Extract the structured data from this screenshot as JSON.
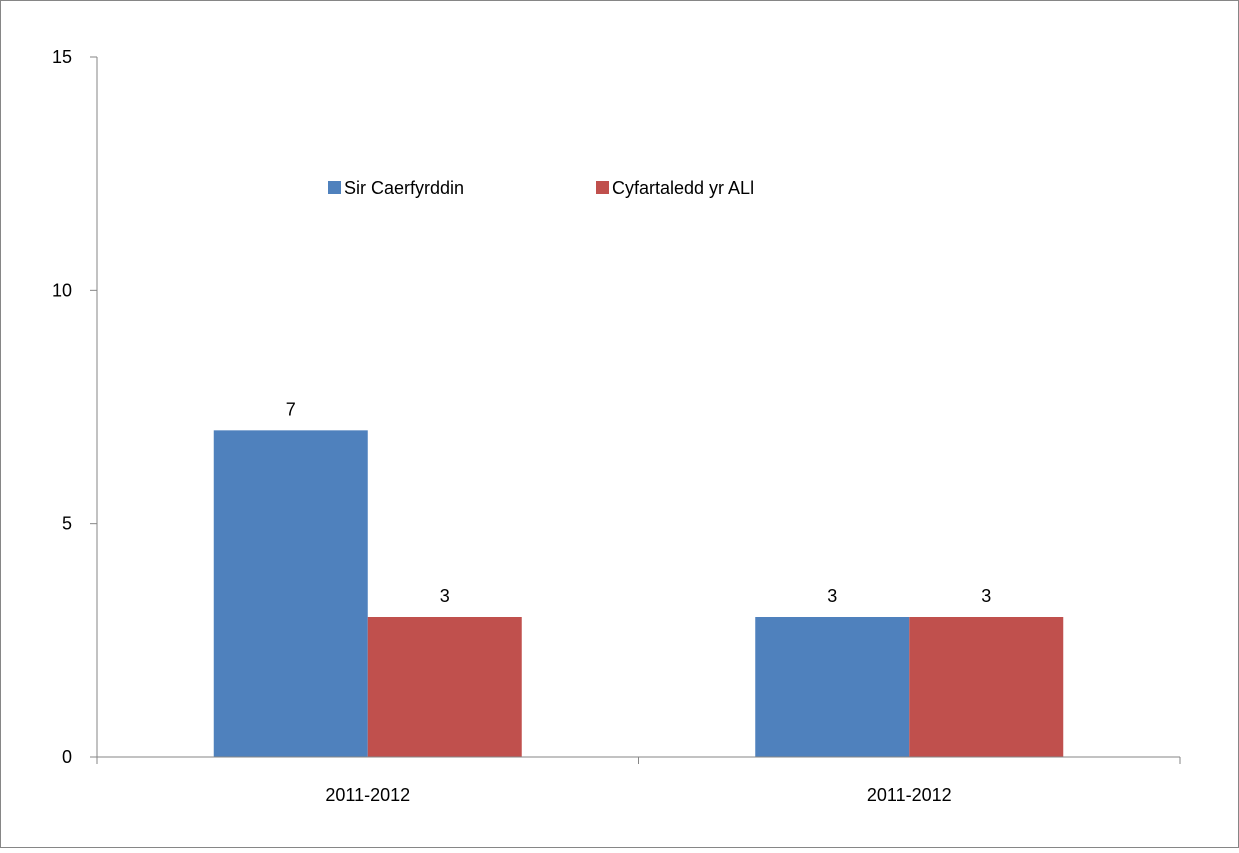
{
  "chart_data": {
    "type": "bar",
    "title": "",
    "xlabel": "",
    "ylabel": "",
    "categories": [
      "2011-2012",
      "2011-2012"
    ],
    "series": [
      {
        "name": "Sir Caerfyrddin",
        "values": [
          7,
          3
        ],
        "color": "#4f81bd"
      },
      {
        "name": "Cyfartaledd yr ALl",
        "values": [
          3,
          3
        ],
        "color": "#c0504d"
      }
    ],
    "ylim": [
      0,
      15
    ],
    "yticks": [
      0,
      5,
      10,
      15
    ],
    "ytick_labels": [
      "0",
      "5",
      "10",
      "15"
    ],
    "grid": false,
    "legend_position": "top-center",
    "data_labels": true
  }
}
